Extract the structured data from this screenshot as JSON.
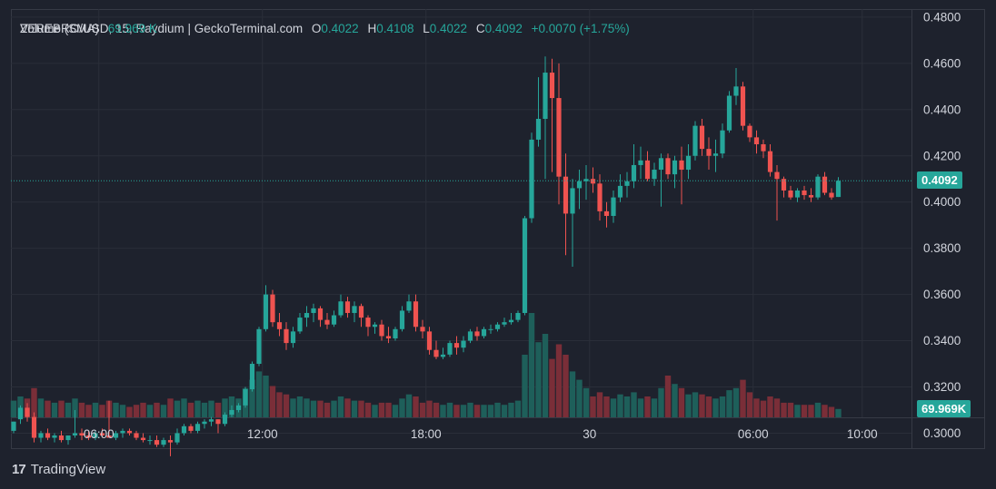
{
  "legend": {
    "symbol": "ZEREBRO/USD, 15, Raydium | GeckoTerminal.com",
    "open_label": "O",
    "open": "0.4022",
    "high_label": "H",
    "high": "0.4108",
    "low_label": "L",
    "low": "0.4022",
    "close_label": "C",
    "close": "0.4092",
    "change": "+0.0070 (+1.75%)",
    "volume_label": "Volume (SMA)",
    "volume_value": "69.969 K"
  },
  "badges": {
    "price": "0.4092",
    "volume": "69.969K"
  },
  "brand": {
    "logo": "17",
    "name": "TradingView"
  },
  "colors": {
    "background": "#1e222d",
    "up": "#26a69a",
    "down": "#ef5350",
    "grid": "#2a2e39",
    "text": "#d1d4dc"
  },
  "chart_data": {
    "type": "candlestick",
    "y_ticks": [
      "0.4800",
      "0.4600",
      "0.4400",
      "0.4200",
      "0.4000",
      "0.3800",
      "0.3600",
      "0.3400",
      "0.3200",
      "0.3000"
    ],
    "ylim": [
      0.2935,
      0.4835
    ],
    "x_ticks": [
      {
        "label": "06:00",
        "index": 12.5
      },
      {
        "label": "12:00",
        "index": 36.5
      },
      {
        "label": "18:00",
        "index": 60.5
      },
      {
        "label": "30",
        "index": 84.5
      },
      {
        "label": "06:00",
        "index": 108.5
      },
      {
        "label": "10:00",
        "index": 124.5
      }
    ],
    "last_price": 0.4092,
    "candles": [
      [
        0.301,
        0.305,
        0.3,
        0.305,
        8
      ],
      [
        0.306,
        0.312,
        0.304,
        0.311,
        10
      ],
      [
        0.311,
        0.313,
        0.305,
        0.307,
        9
      ],
      [
        0.307,
        0.309,
        0.296,
        0.298,
        14
      ],
      [
        0.298,
        0.301,
        0.296,
        0.3,
        9
      ],
      [
        0.3,
        0.302,
        0.297,
        0.298,
        8
      ],
      [
        0.298,
        0.3,
        0.296,
        0.299,
        7
      ],
      [
        0.299,
        0.301,
        0.296,
        0.297,
        8
      ],
      [
        0.297,
        0.299,
        0.295,
        0.299,
        7
      ],
      [
        0.299,
        0.31,
        0.298,
        0.3,
        9
      ],
      [
        0.3,
        0.302,
        0.297,
        0.299,
        7
      ],
      [
        0.299,
        0.301,
        0.297,
        0.298,
        6
      ],
      [
        0.298,
        0.301,
        0.297,
        0.3,
        7
      ],
      [
        0.3,
        0.302,
        0.298,
        0.299,
        6
      ],
      [
        0.299,
        0.314,
        0.298,
        0.298,
        8
      ],
      [
        0.298,
        0.301,
        0.297,
        0.3,
        7
      ],
      [
        0.3,
        0.302,
        0.298,
        0.301,
        6
      ],
      [
        0.301,
        0.302,
        0.299,
        0.3,
        5
      ],
      [
        0.3,
        0.301,
        0.297,
        0.298,
        6
      ],
      [
        0.298,
        0.3,
        0.296,
        0.297,
        7
      ],
      [
        0.297,
        0.299,
        0.295,
        0.297,
        6
      ],
      [
        0.297,
        0.299,
        0.294,
        0.295,
        7
      ],
      [
        0.295,
        0.298,
        0.294,
        0.297,
        6
      ],
      [
        0.297,
        0.299,
        0.29,
        0.296,
        9
      ],
      [
        0.296,
        0.302,
        0.295,
        0.3,
        8
      ],
      [
        0.3,
        0.304,
        0.299,
        0.303,
        9
      ],
      [
        0.303,
        0.304,
        0.3,
        0.301,
        7
      ],
      [
        0.301,
        0.305,
        0.3,
        0.304,
        8
      ],
      [
        0.304,
        0.306,
        0.302,
        0.305,
        7
      ],
      [
        0.305,
        0.307,
        0.303,
        0.306,
        8
      ],
      [
        0.306,
        0.306,
        0.3,
        0.304,
        7
      ],
      [
        0.304,
        0.309,
        0.303,
        0.308,
        9
      ],
      [
        0.308,
        0.312,
        0.307,
        0.31,
        10
      ],
      [
        0.31,
        0.313,
        0.309,
        0.312,
        9
      ],
      [
        0.312,
        0.32,
        0.311,
        0.319,
        14
      ],
      [
        0.319,
        0.331,
        0.318,
        0.33,
        18
      ],
      [
        0.33,
        0.346,
        0.329,
        0.345,
        22
      ],
      [
        0.345,
        0.364,
        0.344,
        0.36,
        20
      ],
      [
        0.36,
        0.362,
        0.346,
        0.348,
        15
      ],
      [
        0.348,
        0.352,
        0.342,
        0.345,
        12
      ],
      [
        0.345,
        0.348,
        0.336,
        0.339,
        11
      ],
      [
        0.339,
        0.346,
        0.337,
        0.344,
        9
      ],
      [
        0.344,
        0.352,
        0.343,
        0.35,
        10
      ],
      [
        0.35,
        0.355,
        0.346,
        0.352,
        9
      ],
      [
        0.352,
        0.356,
        0.348,
        0.354,
        8
      ],
      [
        0.354,
        0.355,
        0.346,
        0.349,
        8
      ],
      [
        0.349,
        0.352,
        0.345,
        0.347,
        7
      ],
      [
        0.347,
        0.353,
        0.346,
        0.351,
        8
      ],
      [
        0.351,
        0.36,
        0.35,
        0.357,
        10
      ],
      [
        0.357,
        0.359,
        0.35,
        0.352,
        9
      ],
      [
        0.352,
        0.357,
        0.348,
        0.355,
        8
      ],
      [
        0.355,
        0.356,
        0.346,
        0.35,
        8
      ],
      [
        0.35,
        0.351,
        0.342,
        0.346,
        7
      ],
      [
        0.346,
        0.348,
        0.343,
        0.347,
        6
      ],
      [
        0.347,
        0.349,
        0.34,
        0.342,
        7
      ],
      [
        0.342,
        0.346,
        0.339,
        0.341,
        7
      ],
      [
        0.341,
        0.346,
        0.34,
        0.345,
        6
      ],
      [
        0.345,
        0.355,
        0.344,
        0.353,
        9
      ],
      [
        0.353,
        0.36,
        0.352,
        0.357,
        11
      ],
      [
        0.357,
        0.36,
        0.344,
        0.346,
        10
      ],
      [
        0.346,
        0.349,
        0.341,
        0.344,
        7
      ],
      [
        0.344,
        0.346,
        0.334,
        0.336,
        8
      ],
      [
        0.336,
        0.34,
        0.332,
        0.333,
        7
      ],
      [
        0.333,
        0.337,
        0.332,
        0.334,
        6
      ],
      [
        0.334,
        0.34,
        0.333,
        0.339,
        7
      ],
      [
        0.339,
        0.342,
        0.334,
        0.337,
        6
      ],
      [
        0.337,
        0.342,
        0.335,
        0.34,
        6
      ],
      [
        0.34,
        0.345,
        0.339,
        0.344,
        7
      ],
      [
        0.344,
        0.346,
        0.34,
        0.342,
        6
      ],
      [
        0.342,
        0.346,
        0.341,
        0.345,
        6
      ],
      [
        0.345,
        0.347,
        0.343,
        0.345,
        6
      ],
      [
        0.345,
        0.348,
        0.344,
        0.347,
        7
      ],
      [
        0.347,
        0.35,
        0.346,
        0.348,
        6
      ],
      [
        0.348,
        0.352,
        0.347,
        0.349,
        7
      ],
      [
        0.349,
        0.353,
        0.348,
        0.352,
        8
      ],
      [
        0.352,
        0.394,
        0.351,
        0.393,
        30
      ],
      [
        0.393,
        0.43,
        0.391,
        0.427,
        50
      ],
      [
        0.427,
        0.454,
        0.424,
        0.436,
        36
      ],
      [
        0.436,
        0.463,
        0.41,
        0.456,
        40
      ],
      [
        0.456,
        0.462,
        0.413,
        0.445,
        28
      ],
      [
        0.445,
        0.46,
        0.399,
        0.411,
        35
      ],
      [
        0.411,
        0.421,
        0.377,
        0.395,
        30
      ],
      [
        0.395,
        0.41,
        0.372,
        0.406,
        22
      ],
      [
        0.406,
        0.414,
        0.397,
        0.409,
        18
      ],
      [
        0.409,
        0.416,
        0.401,
        0.41,
        14
      ],
      [
        0.41,
        0.415,
        0.404,
        0.408,
        10
      ],
      [
        0.408,
        0.412,
        0.392,
        0.396,
        12
      ],
      [
        0.396,
        0.4,
        0.389,
        0.394,
        10
      ],
      [
        0.394,
        0.405,
        0.391,
        0.402,
        9
      ],
      [
        0.402,
        0.412,
        0.4,
        0.407,
        11
      ],
      [
        0.407,
        0.413,
        0.402,
        0.409,
        10
      ],
      [
        0.409,
        0.425,
        0.406,
        0.416,
        12
      ],
      [
        0.416,
        0.424,
        0.41,
        0.418,
        9
      ],
      [
        0.418,
        0.422,
        0.409,
        0.41,
        10
      ],
      [
        0.41,
        0.417,
        0.407,
        0.414,
        9
      ],
      [
        0.414,
        0.421,
        0.398,
        0.419,
        14
      ],
      [
        0.419,
        0.421,
        0.41,
        0.412,
        20
      ],
      [
        0.412,
        0.42,
        0.406,
        0.418,
        16
      ],
      [
        0.418,
        0.424,
        0.399,
        0.414,
        14
      ],
      [
        0.414,
        0.425,
        0.41,
        0.42,
        11
      ],
      [
        0.42,
        0.435,
        0.418,
        0.433,
        12
      ],
      [
        0.433,
        0.436,
        0.42,
        0.423,
        11
      ],
      [
        0.423,
        0.428,
        0.414,
        0.42,
        10
      ],
      [
        0.42,
        0.427,
        0.413,
        0.421,
        9
      ],
      [
        0.421,
        0.434,
        0.419,
        0.431,
        10
      ],
      [
        0.431,
        0.448,
        0.43,
        0.446,
        13
      ],
      [
        0.446,
        0.458,
        0.442,
        0.45,
        14
      ],
      [
        0.45,
        0.452,
        0.431,
        0.433,
        18
      ],
      [
        0.433,
        0.434,
        0.426,
        0.428,
        12
      ],
      [
        0.428,
        0.431,
        0.421,
        0.425,
        9
      ],
      [
        0.425,
        0.427,
        0.419,
        0.422,
        8
      ],
      [
        0.422,
        0.425,
        0.411,
        0.413,
        10
      ],
      [
        0.413,
        0.416,
        0.392,
        0.41,
        9
      ],
      [
        0.41,
        0.411,
        0.402,
        0.405,
        7
      ],
      [
        0.405,
        0.407,
        0.401,
        0.402,
        7
      ],
      [
        0.402,
        0.406,
        0.4,
        0.405,
        6
      ],
      [
        0.405,
        0.407,
        0.401,
        0.403,
        6
      ],
      [
        0.403,
        0.406,
        0.4,
        0.402,
        6
      ],
      [
        0.402,
        0.412,
        0.401,
        0.411,
        7
      ],
      [
        0.411,
        0.413,
        0.403,
        0.404,
        6
      ],
      [
        0.404,
        0.406,
        0.401,
        0.402,
        5
      ],
      [
        0.4022,
        0.4108,
        0.4022,
        0.4092,
        4
      ]
    ]
  }
}
